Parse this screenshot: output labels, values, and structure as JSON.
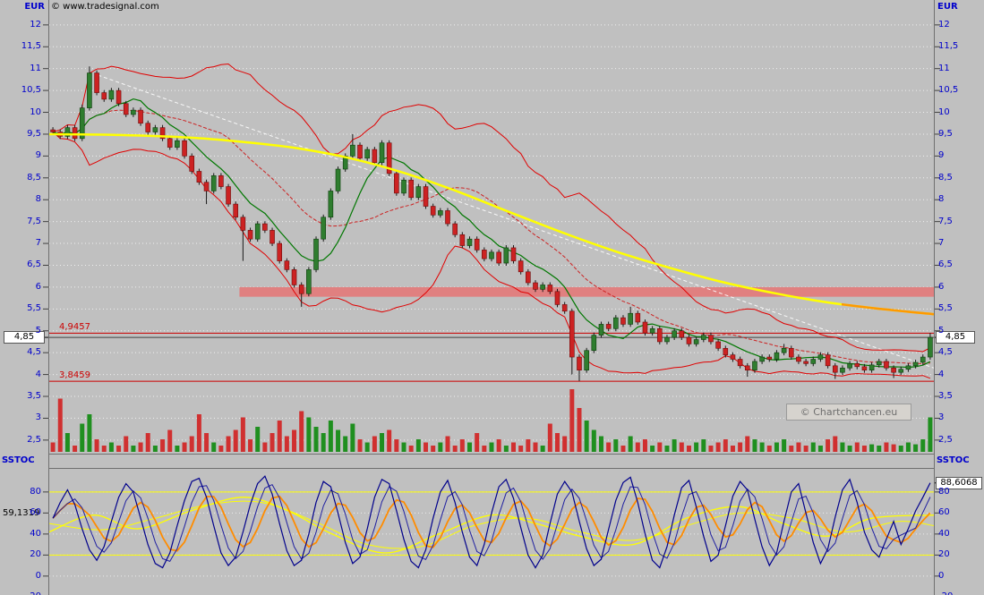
{
  "header": {
    "copyright": "© www.tradesignal.com",
    "left_axis_title": "EUR",
    "right_axis_title": "EUR"
  },
  "watermark": {
    "label": "© Chartchancen.eu"
  },
  "sstoc_panel": {
    "title_left": "SSTOC",
    "title_right": "SSTOC"
  },
  "colors": {
    "background": "#c0c0c0",
    "axis_text": "#0000cc",
    "grid": "#ffffff",
    "panel_border": "#707070",
    "tick_dash": "#404040",
    "candle_up": "#2f7d2f",
    "candle_down": "#cc2222",
    "candle_up_edge": "#0c3d0c",
    "candle_down_edge": "#6e0b0b",
    "wick": "#1a1a1a",
    "volume_up": "#1f8f1f",
    "volume_down": "#d03030",
    "ma_yellow": "#ffff00",
    "ma_yellow_tail": "#ff9900",
    "band_pink": "#e08080",
    "level_red": "#cc0000",
    "last_price_line": "#404040",
    "boll_band": "#e00000",
    "boll_mid": "#cc2222",
    "sma_green": "#007700",
    "trend_white": "#ffffff",
    "sto_fast": "#00008b",
    "sto_slow": "#2020a0",
    "sto_orange": "#ff8c00",
    "sto_yellow": "#ffff00"
  },
  "chart_data": [
    {
      "type": "candlestick",
      "ylabel": "EUR",
      "ylim": [
        2.19,
        12.57
      ],
      "grid": true,
      "yticks": [
        {
          "v": 12,
          "label": "12"
        },
        {
          "v": 11.5,
          "label": "11,5"
        },
        {
          "v": 11,
          "label": "11"
        },
        {
          "v": 10.5,
          "label": "10,5"
        },
        {
          "v": 10,
          "label": "10"
        },
        {
          "v": 9.5,
          "label": "9,5"
        },
        {
          "v": 9,
          "label": "9"
        },
        {
          "v": 8.5,
          "label": "8,5"
        },
        {
          "v": 8,
          "label": "8"
        },
        {
          "v": 7.5,
          "label": "7,5"
        },
        {
          "v": 7,
          "label": "7"
        },
        {
          "v": 6.5,
          "label": "6,5"
        },
        {
          "v": 6,
          "label": "6"
        },
        {
          "v": 5.5,
          "label": "5,5"
        },
        {
          "v": 5,
          "label": "5"
        },
        {
          "v": 4.5,
          "label": "4,5"
        },
        {
          "v": 4,
          "label": "4"
        },
        {
          "v": 3.5,
          "label": "3,5"
        },
        {
          "v": 3,
          "label": "3"
        },
        {
          "v": 2.5,
          "label": "2,5"
        }
      ],
      "open_first": 9.6,
      "default_wick": 0.06,
      "closes": [
        9.55,
        9.45,
        9.65,
        9.4,
        10.1,
        10.9,
        10.45,
        10.3,
        10.5,
        10.2,
        9.95,
        10.05,
        9.75,
        9.55,
        9.65,
        9.4,
        9.2,
        9.35,
        9.0,
        8.65,
        8.4,
        8.2,
        8.55,
        8.3,
        7.9,
        7.6,
        7.3,
        7.1,
        7.45,
        7.3,
        7.0,
        6.6,
        6.4,
        6.05,
        5.85,
        6.4,
        7.1,
        7.6,
        8.2,
        8.7,
        9.0,
        9.25,
        8.95,
        9.15,
        8.85,
        9.3,
        8.6,
        8.15,
        8.45,
        8.05,
        8.3,
        7.85,
        7.65,
        7.75,
        7.45,
        7.2,
        6.95,
        7.1,
        6.85,
        6.65,
        6.8,
        6.55,
        6.9,
        6.6,
        6.35,
        6.1,
        5.95,
        6.05,
        5.9,
        5.6,
        5.45,
        4.4,
        4.1,
        4.55,
        4.9,
        5.15,
        5.05,
        5.3,
        5.15,
        5.4,
        5.2,
        4.95,
        5.05,
        4.75,
        4.85,
        5.0,
        4.85,
        4.7,
        4.8,
        4.9,
        4.75,
        4.6,
        4.45,
        4.35,
        4.2,
        4.1,
        4.3,
        4.4,
        4.35,
        4.5,
        4.6,
        4.4,
        4.3,
        4.25,
        4.35,
        4.45,
        4.2,
        4.05,
        4.15,
        4.25,
        4.18,
        4.1,
        4.22,
        4.3,
        4.15,
        4.05,
        4.12,
        4.2,
        4.28,
        4.4,
        4.85
      ],
      "wick_high_overrides": {
        "4": 10.18,
        "5": 11.05,
        "41": 9.5,
        "79": 5.55,
        "100": 4.7,
        "120": 4.95
      },
      "wick_low_overrides": {
        "21": 7.9,
        "26": 6.6,
        "34": 5.55,
        "71": 4.0,
        "72": 3.85,
        "95": 3.95,
        "107": 3.9,
        "115": 3.92
      },
      "volume": [
        0.15,
        0.85,
        0.3,
        0.1,
        0.45,
        0.6,
        0.2,
        0.1,
        0.15,
        0.1,
        0.25,
        0.1,
        0.15,
        0.3,
        0.1,
        0.2,
        0.35,
        0.1,
        0.15,
        0.25,
        0.6,
        0.3,
        0.15,
        0.1,
        0.25,
        0.35,
        0.55,
        0.2,
        0.4,
        0.15,
        0.3,
        0.5,
        0.25,
        0.35,
        0.65,
        0.55,
        0.4,
        0.3,
        0.5,
        0.35,
        0.25,
        0.45,
        0.2,
        0.15,
        0.25,
        0.3,
        0.35,
        0.2,
        0.15,
        0.1,
        0.2,
        0.15,
        0.1,
        0.15,
        0.25,
        0.1,
        0.2,
        0.15,
        0.3,
        0.1,
        0.15,
        0.2,
        0.1,
        0.15,
        0.1,
        0.2,
        0.15,
        0.1,
        0.45,
        0.3,
        0.25,
        1.0,
        0.7,
        0.5,
        0.35,
        0.25,
        0.15,
        0.2,
        0.1,
        0.25,
        0.15,
        0.2,
        0.1,
        0.15,
        0.1,
        0.2,
        0.15,
        0.1,
        0.15,
        0.2,
        0.1,
        0.15,
        0.2,
        0.1,
        0.15,
        0.25,
        0.2,
        0.15,
        0.1,
        0.15,
        0.2,
        0.1,
        0.15,
        0.1,
        0.15,
        0.1,
        0.2,
        0.25,
        0.15,
        0.1,
        0.15,
        0.1,
        0.12,
        0.1,
        0.15,
        0.12,
        0.1,
        0.15,
        0.12,
        0.2,
        0.55
      ],
      "indicators": {
        "sma_green_window": 8,
        "boll_window": 20,
        "boll_mult": 2
      },
      "yellow_ma_anchors": [
        [
          0,
          9.5
        ],
        [
          0.08,
          9.48
        ],
        [
          0.16,
          9.42
        ],
        [
          0.22,
          9.32
        ],
        [
          0.28,
          9.18
        ],
        [
          0.34,
          8.95
        ],
        [
          0.4,
          8.62
        ],
        [
          0.46,
          8.2
        ],
        [
          0.52,
          7.72
        ],
        [
          0.58,
          7.25
        ],
        [
          0.64,
          6.82
        ],
        [
          0.7,
          6.45
        ],
        [
          0.76,
          6.12
        ],
        [
          0.82,
          5.86
        ],
        [
          0.88,
          5.65
        ],
        [
          0.94,
          5.5
        ],
        [
          1,
          5.38
        ]
      ],
      "trendline": {
        "x1_frac": 0.055,
        "price1": 10.85,
        "x2_frac": 1.0,
        "price2": 4.15
      },
      "resistance_band": {
        "start_frac": 0.215,
        "end_frac": 1.0,
        "top": 6.0,
        "bottom": 5.78
      },
      "hlines": [
        {
          "value": 4.9457,
          "label": "4,9457"
        },
        {
          "value": 3.8459,
          "label": "3,8459"
        }
      ],
      "last_price": {
        "value": 4.85,
        "label": "4,85"
      }
    },
    {
      "type": "line",
      "title": "SSTOC",
      "ylim": [
        -18,
        102
      ],
      "grid": true,
      "yticks": [
        {
          "v": 80,
          "label": "80"
        },
        {
          "v": 60,
          "label": "60"
        },
        {
          "v": 40,
          "label": "40"
        },
        {
          "v": 20,
          "label": "20"
        },
        {
          "v": 0,
          "label": "0"
        },
        {
          "v": -20,
          "label": "-20"
        }
      ],
      "hlines": [
        80,
        20
      ],
      "k_values": [
        55,
        70,
        82,
        68,
        45,
        25,
        15,
        28,
        52,
        75,
        88,
        80,
        55,
        30,
        12,
        8,
        22,
        48,
        72,
        90,
        93,
        75,
        48,
        22,
        10,
        18,
        42,
        68,
        88,
        95,
        78,
        50,
        24,
        10,
        15,
        40,
        70,
        90,
        85,
        60,
        32,
        12,
        18,
        45,
        75,
        92,
        88,
        62,
        35,
        14,
        8,
        25,
        55,
        80,
        91,
        70,
        42,
        18,
        10,
        30,
        60,
        85,
        92,
        74,
        46,
        20,
        8,
        20,
        50,
        78,
        90,
        80,
        52,
        26,
        10,
        16,
        44,
        72,
        89,
        94,
        70,
        40,
        15,
        8,
        28,
        58,
        84,
        91,
        66,
        38,
        14,
        20,
        48,
        76,
        90,
        82,
        54,
        28,
        10,
        22,
        52,
        80,
        88,
        60,
        32,
        12,
        26,
        56,
        82,
        92,
        70,
        42,
        25,
        18,
        35,
        52,
        30,
        45,
        62,
        75,
        88.6
      ],
      "smoothing": {
        "slow_window": 3,
        "orange_window": 5
      },
      "yellow_anchors_1": [
        [
          0,
          42
        ],
        [
          0.05,
          58
        ],
        [
          0.1,
          45
        ],
        [
          0.16,
          62
        ],
        [
          0.22,
          75
        ],
        [
          0.27,
          62
        ],
        [
          0.32,
          40
        ],
        [
          0.38,
          22
        ],
        [
          0.44,
          40
        ],
        [
          0.5,
          58
        ],
        [
          0.55,
          50
        ],
        [
          0.6,
          38
        ],
        [
          0.66,
          30
        ],
        [
          0.72,
          55
        ],
        [
          0.78,
          66
        ],
        [
          0.83,
          50
        ],
        [
          0.88,
          38
        ],
        [
          0.93,
          55
        ],
        [
          1,
          58
        ]
      ],
      "yellow_anchors_2": [
        [
          0,
          50
        ],
        [
          0.06,
          44
        ],
        [
          0.12,
          55
        ],
        [
          0.18,
          68
        ],
        [
          0.24,
          70
        ],
        [
          0.3,
          52
        ],
        [
          0.36,
          30
        ],
        [
          0.42,
          28
        ],
        [
          0.48,
          48
        ],
        [
          0.54,
          55
        ],
        [
          0.6,
          42
        ],
        [
          0.66,
          34
        ],
        [
          0.72,
          48
        ],
        [
          0.78,
          60
        ],
        [
          0.84,
          55
        ],
        [
          0.9,
          42
        ],
        [
          0.96,
          52
        ],
        [
          1,
          48
        ]
      ],
      "last_values": {
        "fast": {
          "value": 88.6068,
          "label": "88,6068"
        },
        "slow": {
          "value": 59.1319,
          "label": "59,1319"
        }
      }
    }
  ]
}
